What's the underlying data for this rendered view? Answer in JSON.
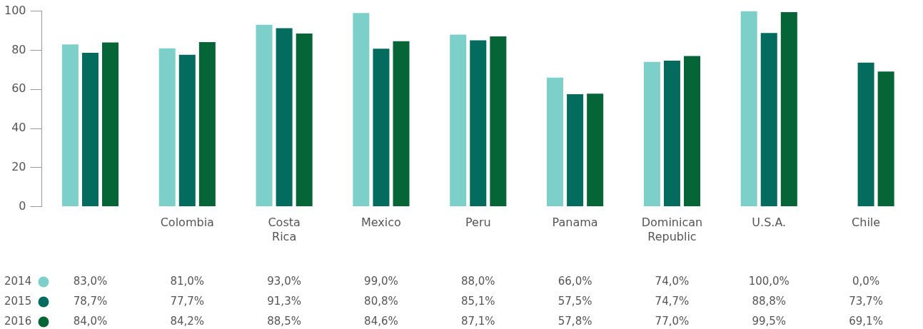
{
  "chart_data": {
    "type": "bar",
    "categories": [
      null,
      "Colombia",
      "Costa Rica",
      "Mexico",
      "Peru",
      "Panama",
      "Dominican Republic",
      "U.S.A.",
      "Chile"
    ],
    "ylim": [
      0,
      100
    ],
    "yticks": [
      0,
      20,
      40,
      60,
      80,
      100
    ],
    "grid": false,
    "legend": "bottom left",
    "series": [
      {
        "name": "2014",
        "color": "#7dcfc9",
        "values": [
          83.0,
          81.0,
          93.0,
          99.0,
          88.0,
          66.0,
          74.0,
          100.0,
          0.0
        ],
        "value_labels": [
          "83,0%",
          "81,0%",
          "93,0%",
          "99,0%",
          "88,0%",
          "66,0%",
          "74,0%",
          "100,0%",
          "0,0%"
        ]
      },
      {
        "name": "2015",
        "color": "#046b5f",
        "values": [
          78.7,
          77.7,
          91.3,
          80.8,
          85.1,
          57.5,
          74.7,
          88.8,
          73.7
        ],
        "value_labels": [
          "78,7%",
          "77,7%",
          "91,3%",
          "80,8%",
          "85,1%",
          "57,5%",
          "74,7%",
          "88,8%",
          "73,7%"
        ]
      },
      {
        "name": "2016",
        "color": "#066537",
        "values": [
          84.0,
          84.2,
          88.5,
          84.6,
          87.1,
          57.8,
          77.0,
          99.5,
          69.1
        ],
        "value_labels": [
          "84,0%",
          "84,2%",
          "88,5%",
          "84,6%",
          "87,1%",
          "57,8%",
          "77,0%",
          "99,5%",
          "69,1%"
        ]
      }
    ]
  }
}
